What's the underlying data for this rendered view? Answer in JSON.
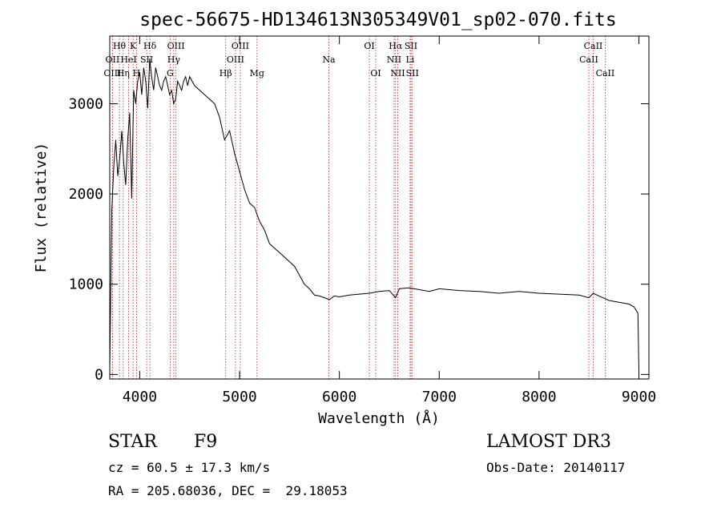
{
  "chart_data": {
    "type": "line",
    "title": "spec-56675-HD134613N305349V01_sp02-070.fits",
    "xlabel": "Wavelength (Å)",
    "ylabel": "Flux (relative)",
    "xlim": [
      3700,
      9100
    ],
    "ylim": [
      -50,
      3750
    ],
    "xticks": [
      4000,
      5000,
      6000,
      7000,
      8000,
      9000
    ],
    "yticks": [
      0,
      1000,
      2000,
      3000
    ],
    "series": [
      {
        "name": "flux",
        "x": [
          3700,
          3720,
          3740,
          3760,
          3780,
          3800,
          3820,
          3840,
          3860,
          3880,
          3900,
          3920,
          3940,
          3960,
          3980,
          4000,
          4020,
          4040,
          4060,
          4080,
          4100,
          4120,
          4140,
          4160,
          4180,
          4200,
          4220,
          4240,
          4260,
          4280,
          4300,
          4320,
          4340,
          4360,
          4380,
          4400,
          4420,
          4440,
          4460,
          4480,
          4500,
          4550,
          4600,
          4650,
          4700,
          4750,
          4800,
          4850,
          4900,
          4950,
          5000,
          5050,
          5100,
          5150,
          5200,
          5250,
          5300,
          5350,
          5400,
          5450,
          5500,
          5550,
          5600,
          5650,
          5700,
          5750,
          5800,
          5850,
          5900,
          5950,
          6000,
          6100,
          6200,
          6300,
          6400,
          6500,
          6562,
          6600,
          6700,
          6800,
          6900,
          7000,
          7200,
          7400,
          7600,
          7800,
          8000,
          8200,
          8400,
          8498,
          8542,
          8600,
          8662,
          8700,
          8800,
          8900,
          8950,
          8990,
          9000
        ],
        "y": [
          50,
          1800,
          2300,
          2600,
          2200,
          2400,
          2700,
          2350,
          2100,
          2600,
          2900,
          1950,
          3150,
          3000,
          3250,
          3350,
          3100,
          3400,
          3250,
          2950,
          3500,
          3300,
          3150,
          3400,
          3300,
          3200,
          3150,
          3250,
          3300,
          3200,
          3100,
          3150,
          3000,
          3050,
          3250,
          3200,
          3150,
          3250,
          3300,
          3200,
          3300,
          3200,
          3150,
          3100,
          3050,
          3000,
          2850,
          2600,
          2700,
          2450,
          2250,
          2050,
          1900,
          1850,
          1700,
          1600,
          1450,
          1400,
          1350,
          1300,
          1250,
          1200,
          1100,
          1000,
          950,
          880,
          870,
          850,
          830,
          870,
          860,
          880,
          890,
          900,
          920,
          930,
          850,
          950,
          960,
          940,
          920,
          950,
          930,
          920,
          900,
          920,
          900,
          890,
          880,
          850,
          900,
          870,
          840,
          820,
          800,
          780,
          750,
          680,
          40
        ]
      }
    ],
    "lines": [
      {
        "label": "Hθ",
        "x": 3797,
        "row": 1
      },
      {
        "label": "OII",
        "x": 3727,
        "row": 2
      },
      {
        "label": "OIII",
        "x": 3727,
        "row": 3
      },
      {
        "label": "K",
        "x": 3934,
        "row": 1
      },
      {
        "label": "HeI",
        "x": 3889,
        "row": 2
      },
      {
        "label": "Hη",
        "x": 3835,
        "row": 3
      },
      {
        "label": "Hδ",
        "x": 4102,
        "row": 1
      },
      {
        "label": "SII",
        "x": 4070,
        "row": 2
      },
      {
        "label": "H",
        "x": 3968,
        "row": 3
      },
      {
        "label": "OIII",
        "x": 4363,
        "row": 1
      },
      {
        "label": "Hγ",
        "x": 4341,
        "row": 2
      },
      {
        "label": "G",
        "x": 4305,
        "row": 3
      },
      {
        "label": "OIII",
        "x": 5007,
        "row": 1
      },
      {
        "label": "OIII",
        "x": 4959,
        "row": 2
      },
      {
        "label": "Hβ",
        "x": 4861,
        "row": 3
      },
      {
        "label": "Mg",
        "x": 5175,
        "row": 3
      },
      {
        "label": "Na",
        "x": 5894,
        "row": 2
      },
      {
        "label": "OI",
        "x": 6300,
        "row": 1
      },
      {
        "label": "OI",
        "x": 6364,
        "row": 3
      },
      {
        "label": "Hα",
        "x": 6563,
        "row": 1
      },
      {
        "label": "NII",
        "x": 6548,
        "row": 2
      },
      {
        "label": "NII",
        "x": 6584,
        "row": 3
      },
      {
        "label": "SII",
        "x": 6717,
        "row": 1
      },
      {
        "label": "Li",
        "x": 6708,
        "row": 2
      },
      {
        "label": "SII",
        "x": 6731,
        "row": 3
      },
      {
        "label": "CaII",
        "x": 8542,
        "row": 1
      },
      {
        "label": "CaII",
        "x": 8498,
        "row": 2
      },
      {
        "label": "CaII",
        "x": 8662,
        "row": 3
      }
    ]
  },
  "info": {
    "object_class": "STAR",
    "subclass": "F9",
    "survey": "LAMOST DR3",
    "redshift": "cz = 60.5 ± 17.3 km/s",
    "obs_date": "Obs-Date: 20140117",
    "coords": "RA = 205.68036, DEC =  29.18053"
  }
}
